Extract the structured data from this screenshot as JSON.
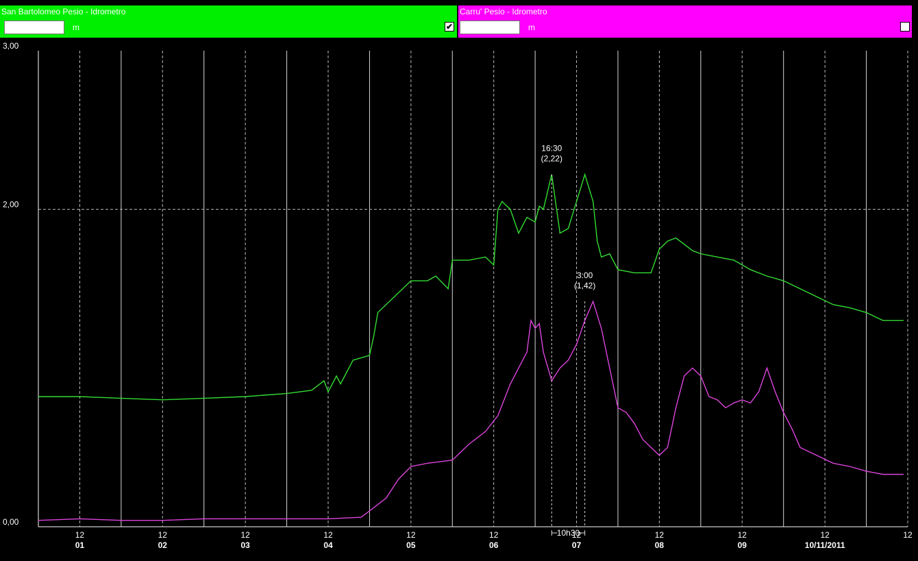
{
  "stations": [
    {
      "title": "San Bartolomeo Pesio - Idrometro",
      "unit": "m",
      "value": "",
      "checked": true,
      "check_glyph": "✔",
      "color": "#00ee00"
    },
    {
      "title": "Carru' Pesio - Idrometro",
      "unit": "m",
      "value": "",
      "checked": false,
      "check_glyph": "",
      "color": "#ff00ff"
    }
  ],
  "chart_data": {
    "type": "line",
    "ylim": [
      0,
      3
    ],
    "y_ticks": [
      "0,00",
      "2,00",
      "3,00"
    ],
    "y_tick_values": [
      0,
      2,
      3
    ],
    "xlim": [
      0,
      10.5
    ],
    "x_day_labels": [
      "01",
      "02",
      "03",
      "04",
      "05",
      "06",
      "07",
      "08",
      "09",
      "10/11/2011"
    ],
    "x_noon_label": "12",
    "grid": true,
    "series": [
      {
        "name": "San Bartolomeo Pesio - Idrometro",
        "color": "#33dd33",
        "x": [
          0,
          0.5,
          1,
          1.5,
          2,
          2.5,
          3,
          3.3,
          3.45,
          3.5,
          3.6,
          3.65,
          3.8,
          4.0,
          4.05,
          4.1,
          4.3,
          4.5,
          4.7,
          4.8,
          4.95,
          5.0,
          5.2,
          5.4,
          5.5,
          5.55,
          5.6,
          5.7,
          5.8,
          5.9,
          6.0,
          6.05,
          6.1,
          6.2,
          6.3,
          6.4,
          6.5,
          6.6,
          6.7,
          6.75,
          6.8,
          6.9,
          7.0,
          7.2,
          7.4,
          7.5,
          7.6,
          7.7,
          7.8,
          7.9,
          8.0,
          8.2,
          8.4,
          8.6,
          8.8,
          9.0,
          9.2,
          9.4,
          9.6,
          9.8,
          10.0,
          10.2,
          10.45
        ],
        "values": [
          0.82,
          0.82,
          0.81,
          0.8,
          0.81,
          0.82,
          0.84,
          0.86,
          0.92,
          0.85,
          0.95,
          0.9,
          1.05,
          1.08,
          1.2,
          1.35,
          1.45,
          1.55,
          1.55,
          1.58,
          1.5,
          1.68,
          1.68,
          1.7,
          1.65,
          2.0,
          2.05,
          2.0,
          1.85,
          1.95,
          1.92,
          2.02,
          2.0,
          2.22,
          1.85,
          1.88,
          2.05,
          2.22,
          2.05,
          1.8,
          1.7,
          1.72,
          1.62,
          1.6,
          1.6,
          1.75,
          1.8,
          1.82,
          1.78,
          1.74,
          1.72,
          1.7,
          1.68,
          1.62,
          1.58,
          1.55,
          1.5,
          1.45,
          1.4,
          1.38,
          1.35,
          1.3,
          1.3
        ]
      },
      {
        "name": "Carru' Pesio - Idrometro",
        "color": "#dd44dd",
        "x": [
          0,
          0.5,
          1,
          1.5,
          2,
          2.5,
          3,
          3.5,
          3.9,
          4.0,
          4.2,
          4.35,
          4.5,
          4.7,
          5.0,
          5.2,
          5.4,
          5.55,
          5.7,
          5.8,
          5.9,
          5.95,
          6.0,
          6.05,
          6.1,
          6.2,
          6.3,
          6.4,
          6.5,
          6.6,
          6.7,
          6.8,
          6.9,
          7.0,
          7.1,
          7.2,
          7.3,
          7.4,
          7.5,
          7.6,
          7.7,
          7.8,
          7.9,
          8.0,
          8.1,
          8.2,
          8.3,
          8.4,
          8.5,
          8.6,
          8.7,
          8.8,
          8.9,
          9.0,
          9.1,
          9.2,
          9.4,
          9.6,
          9.8,
          10.0,
          10.2,
          10.45
        ],
        "values": [
          0.04,
          0.05,
          0.04,
          0.04,
          0.05,
          0.05,
          0.05,
          0.05,
          0.06,
          0.1,
          0.18,
          0.3,
          0.38,
          0.4,
          0.42,
          0.52,
          0.6,
          0.7,
          0.9,
          1.0,
          1.1,
          1.3,
          1.25,
          1.28,
          1.1,
          0.92,
          1.0,
          1.05,
          1.15,
          1.3,
          1.42,
          1.25,
          1.0,
          0.75,
          0.72,
          0.65,
          0.55,
          0.5,
          0.45,
          0.5,
          0.75,
          0.95,
          1.0,
          0.95,
          0.82,
          0.8,
          0.75,
          0.78,
          0.8,
          0.78,
          0.85,
          1.0,
          0.85,
          0.72,
          0.62,
          0.5,
          0.45,
          0.4,
          0.38,
          0.35,
          0.33,
          0.33
        ]
      }
    ],
    "annotations": [
      {
        "series": 0,
        "time": "16:30",
        "value": "(2,22)",
        "x": 6.2,
        "y": 2.22
      },
      {
        "series": 1,
        "time": "3:00",
        "value": "(1,42)",
        "x": 6.6,
        "y": 1.42
      }
    ],
    "span_label": "10h30"
  }
}
